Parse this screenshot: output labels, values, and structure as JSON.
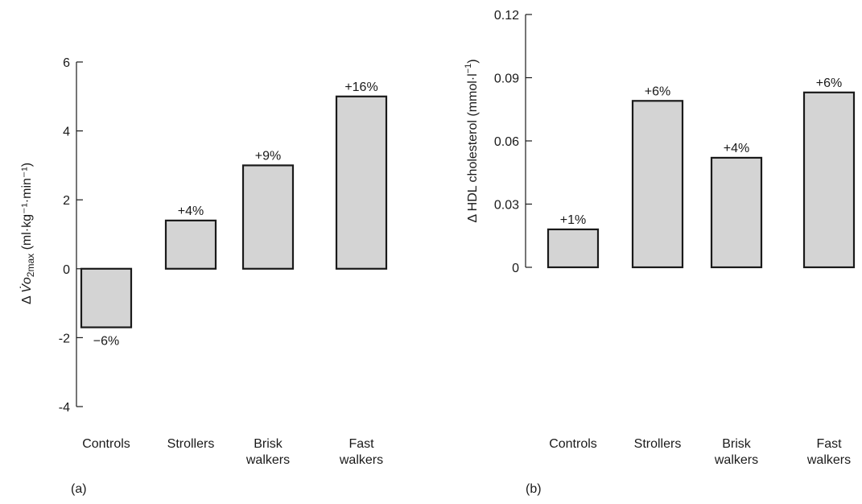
{
  "colors": {
    "bar_fill": "#d4d4d4",
    "bar_stroke": "#1a1a1a"
  },
  "chart_data": [
    {
      "type": "bar",
      "panel_label": "(a)",
      "categories": [
        "Controls",
        "Strollers",
        "Brisk\nwalkers",
        "Fast\nwalkers"
      ],
      "values": [
        -1.7,
        1.4,
        3.0,
        5.0
      ],
      "data_labels": [
        "−6%",
        "+4%",
        "+9%",
        "+16%"
      ],
      "ylabel": "Δ V̇o2max (ml·kg⁻¹·min⁻¹)",
      "ylabel_parts": {
        "prefix": "Δ ",
        "v": "V̇",
        "o": "o",
        "sub": "2max",
        "unit": " (ml·kg⁻¹·min⁻¹)"
      },
      "ylim": [
        -4,
        6
      ],
      "yticks": [
        "-4",
        "-2",
        "0",
        "2",
        "4",
        "6"
      ],
      "ytick_values": [
        -4,
        -2,
        0,
        2,
        4,
        6
      ],
      "grid": false
    },
    {
      "type": "bar",
      "panel_label": "(b)",
      "categories": [
        "Controls",
        "Strollers",
        "Brisk\nwalkers",
        "Fast\nwalkers"
      ],
      "values": [
        0.018,
        0.079,
        0.052,
        0.083
      ],
      "data_labels": [
        "+1%",
        "+6%",
        "+4%",
        "+6%"
      ],
      "ylabel": "Δ HDL cholesterol (mmol·l⁻¹)",
      "ylabel_parts": {
        "prefix": "Δ HDL cholesterol (mmol·l",
        "sup": "−1",
        "suffix": ")"
      },
      "ylim": [
        0,
        0.12
      ],
      "yticks": [
        "0",
        "0.03",
        "0.06",
        "0.09",
        "0.12"
      ],
      "ytick_values": [
        0,
        0.03,
        0.06,
        0.09,
        0.12
      ],
      "grid": false
    }
  ]
}
